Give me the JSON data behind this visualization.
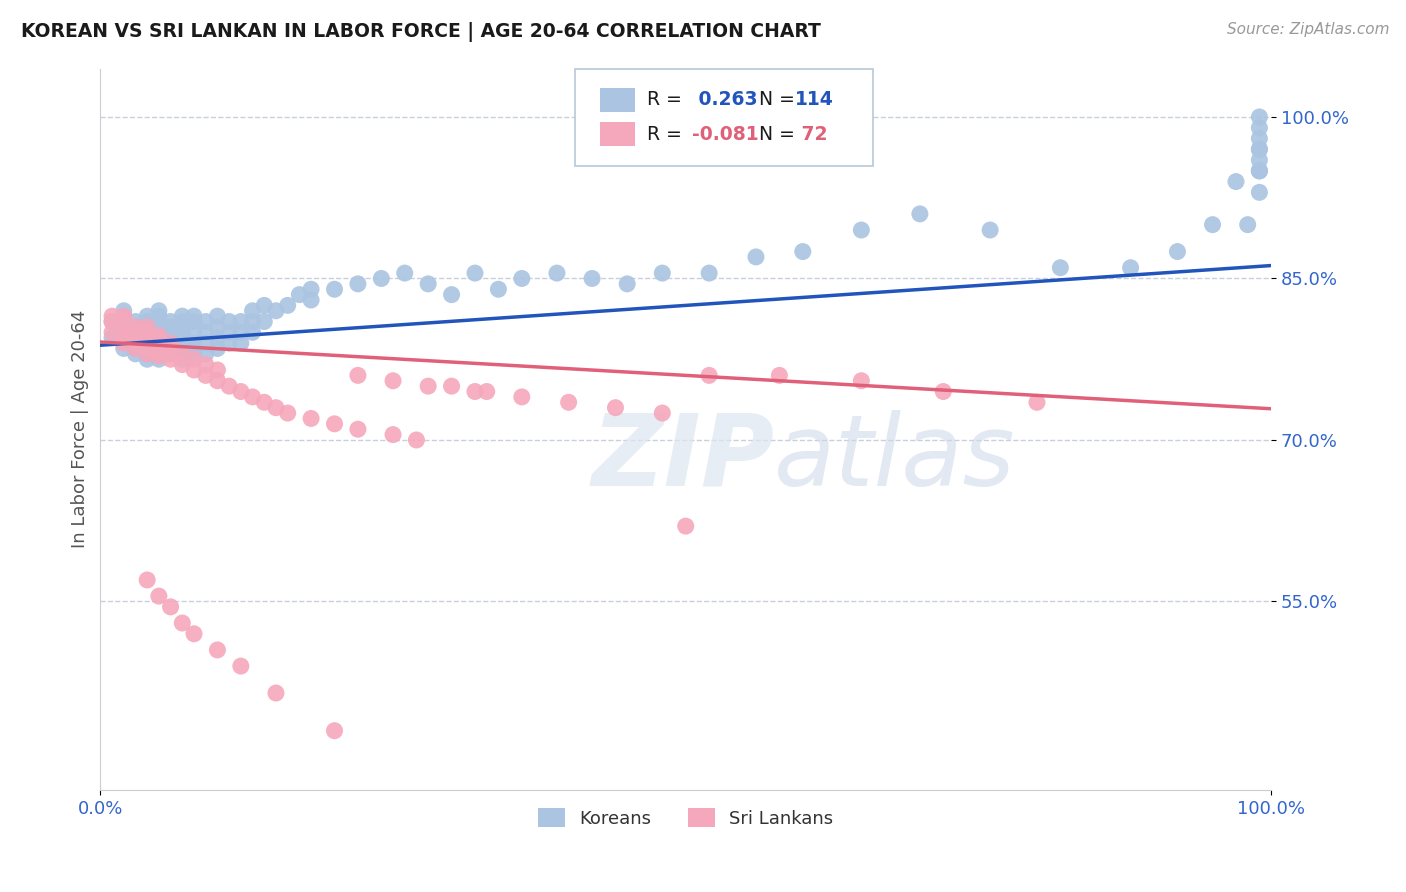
{
  "title": "KOREAN VS SRI LANKAN IN LABOR FORCE | AGE 20-64 CORRELATION CHART",
  "source": "Source: ZipAtlas.com",
  "ylabel": "In Labor Force | Age 20-64",
  "xlim": [
    0.0,
    1.0
  ],
  "ylim": [
    0.375,
    1.045
  ],
  "yticks": [
    0.55,
    0.7,
    0.85,
    1.0
  ],
  "ytick_labels": [
    "55.0%",
    "70.0%",
    "85.0%",
    "100.0%"
  ],
  "xtick_labels": [
    "0.0%",
    "100.0%"
  ],
  "xticks": [
    0.0,
    1.0
  ],
  "korean_R": 0.263,
  "korean_N": 114,
  "srilankan_R": -0.081,
  "srilankan_N": 72,
  "korean_color": "#aac4e2",
  "srilankan_color": "#f5a8bc",
  "korean_line_color": "#2255bb",
  "srilankan_line_color": "#e0607a",
  "watermark_zip": "ZIP",
  "watermark_atlas": "atlas",
  "background_color": "#ffffff",
  "grid_color": "#c8d0dc",
  "title_color": "#1a1a1a",
  "tick_label_color": "#3366cc",
  "legend_text_color": "#1a1a1a",
  "korean_trend_start": 0.788,
  "korean_trend_end": 0.862,
  "srilankan_trend_start": 0.791,
  "srilankan_trend_end": 0.729,
  "korean_x": [
    0.01,
    0.01,
    0.02,
    0.02,
    0.02,
    0.02,
    0.02,
    0.02,
    0.03,
    0.03,
    0.03,
    0.03,
    0.03,
    0.03,
    0.03,
    0.04,
    0.04,
    0.04,
    0.04,
    0.04,
    0.04,
    0.04,
    0.04,
    0.04,
    0.05,
    0.05,
    0.05,
    0.05,
    0.05,
    0.05,
    0.05,
    0.05,
    0.05,
    0.05,
    0.06,
    0.06,
    0.06,
    0.06,
    0.06,
    0.06,
    0.06,
    0.07,
    0.07,
    0.07,
    0.07,
    0.07,
    0.07,
    0.07,
    0.07,
    0.08,
    0.08,
    0.08,
    0.08,
    0.08,
    0.08,
    0.09,
    0.09,
    0.09,
    0.09,
    0.1,
    0.1,
    0.1,
    0.1,
    0.11,
    0.11,
    0.11,
    0.12,
    0.12,
    0.12,
    0.13,
    0.13,
    0.13,
    0.14,
    0.14,
    0.15,
    0.16,
    0.17,
    0.18,
    0.18,
    0.2,
    0.22,
    0.24,
    0.26,
    0.28,
    0.3,
    0.32,
    0.34,
    0.36,
    0.39,
    0.42,
    0.45,
    0.48,
    0.52,
    0.56,
    0.6,
    0.65,
    0.7,
    0.76,
    0.82,
    0.88,
    0.92,
    0.95,
    0.97,
    0.98,
    0.99,
    0.99,
    0.99,
    0.99,
    0.99,
    0.99,
    0.99,
    0.99,
    0.99,
    0.99
  ],
  "korean_y": [
    0.795,
    0.81,
    0.785,
    0.795,
    0.8,
    0.81,
    0.815,
    0.82,
    0.78,
    0.785,
    0.79,
    0.795,
    0.8,
    0.805,
    0.81,
    0.775,
    0.78,
    0.785,
    0.79,
    0.795,
    0.8,
    0.805,
    0.81,
    0.815,
    0.775,
    0.78,
    0.785,
    0.79,
    0.795,
    0.8,
    0.805,
    0.81,
    0.815,
    0.82,
    0.78,
    0.785,
    0.79,
    0.795,
    0.8,
    0.805,
    0.81,
    0.775,
    0.78,
    0.785,
    0.79,
    0.795,
    0.8,
    0.81,
    0.815,
    0.78,
    0.785,
    0.79,
    0.8,
    0.81,
    0.815,
    0.78,
    0.79,
    0.8,
    0.81,
    0.785,
    0.795,
    0.805,
    0.815,
    0.79,
    0.8,
    0.81,
    0.79,
    0.8,
    0.81,
    0.8,
    0.81,
    0.82,
    0.81,
    0.825,
    0.82,
    0.825,
    0.835,
    0.83,
    0.84,
    0.84,
    0.845,
    0.85,
    0.855,
    0.845,
    0.835,
    0.855,
    0.84,
    0.85,
    0.855,
    0.85,
    0.845,
    0.855,
    0.855,
    0.87,
    0.875,
    0.895,
    0.91,
    0.895,
    0.86,
    0.86,
    0.875,
    0.9,
    0.94,
    0.9,
    0.93,
    0.95,
    0.95,
    0.97,
    0.96,
    0.98,
    0.95,
    0.97,
    0.99,
    1.0
  ],
  "srilankan_x": [
    0.01,
    0.01,
    0.01,
    0.02,
    0.02,
    0.02,
    0.02,
    0.02,
    0.02,
    0.03,
    0.03,
    0.03,
    0.03,
    0.03,
    0.04,
    0.04,
    0.04,
    0.04,
    0.04,
    0.04,
    0.05,
    0.05,
    0.05,
    0.05,
    0.05,
    0.06,
    0.06,
    0.06,
    0.07,
    0.07,
    0.08,
    0.08,
    0.09,
    0.09,
    0.1,
    0.1,
    0.11,
    0.12,
    0.13,
    0.14,
    0.15,
    0.16,
    0.18,
    0.2,
    0.22,
    0.25,
    0.27,
    0.3,
    0.33,
    0.22,
    0.25,
    0.28,
    0.32,
    0.36,
    0.4,
    0.44,
    0.48,
    0.52,
    0.58,
    0.65,
    0.72,
    0.8,
    0.5,
    0.04,
    0.05,
    0.06,
    0.07,
    0.08,
    0.1,
    0.12,
    0.15,
    0.2
  ],
  "srilankan_y": [
    0.8,
    0.81,
    0.815,
    0.79,
    0.795,
    0.8,
    0.805,
    0.81,
    0.815,
    0.785,
    0.79,
    0.795,
    0.8,
    0.805,
    0.78,
    0.785,
    0.79,
    0.795,
    0.8,
    0.805,
    0.778,
    0.782,
    0.787,
    0.792,
    0.797,
    0.775,
    0.78,
    0.79,
    0.77,
    0.78,
    0.765,
    0.775,
    0.76,
    0.77,
    0.755,
    0.765,
    0.75,
    0.745,
    0.74,
    0.735,
    0.73,
    0.725,
    0.72,
    0.715,
    0.71,
    0.705,
    0.7,
    0.75,
    0.745,
    0.76,
    0.755,
    0.75,
    0.745,
    0.74,
    0.735,
    0.73,
    0.725,
    0.76,
    0.76,
    0.755,
    0.745,
    0.735,
    0.62,
    0.57,
    0.555,
    0.545,
    0.53,
    0.52,
    0.505,
    0.49,
    0.465,
    0.43
  ]
}
